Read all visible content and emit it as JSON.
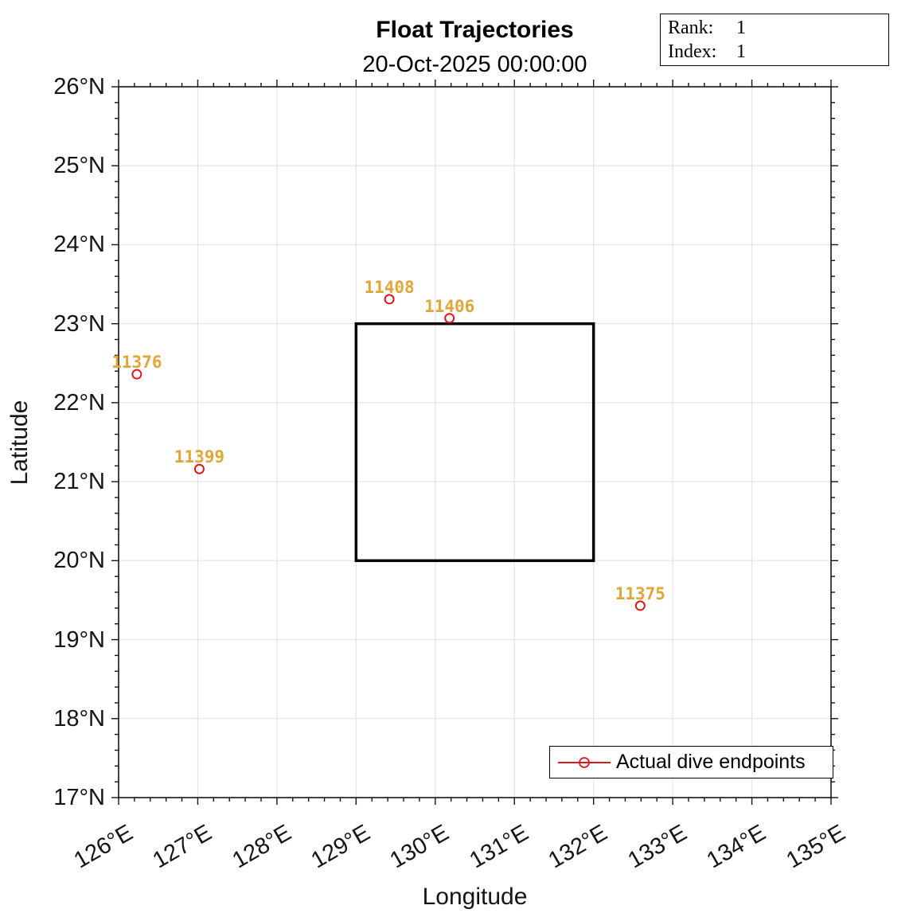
{
  "title": "Float Trajectories",
  "subtitle": "20-Oct-2025 00:00:00",
  "annotation_box": {
    "rows": [
      {
        "label": "Rank:",
        "value": "1"
      },
      {
        "label": "Index:",
        "value": "1"
      }
    ]
  },
  "axes": {
    "xlabel": "Longitude",
    "ylabel": "Latitude"
  },
  "legend": {
    "items": [
      {
        "label": "Actual dive endpoints",
        "marker": "red-open-circle-on-line"
      }
    ]
  },
  "chart_data": {
    "type": "scatter",
    "title": "Float Trajectories",
    "subtitle": "20-Oct-2025 00:00:00",
    "xlabel": "Longitude",
    "ylabel": "Latitude",
    "xlim": [
      126,
      135
    ],
    "ylim": [
      17,
      26
    ],
    "x_tick_labels": [
      "126°E",
      "127°E",
      "128°E",
      "129°E",
      "130°E",
      "131°E",
      "132°E",
      "133°E",
      "134°E",
      "135°E"
    ],
    "y_tick_labels": [
      "17°N",
      "18°N",
      "19°N",
      "20°N",
      "21°N",
      "22°N",
      "23°N",
      "24°N",
      "25°N",
      "26°N"
    ],
    "minor_tick_step": 0.2,
    "grid": true,
    "points": [
      {
        "id": "11376",
        "lon": 126.23,
        "lat": 22.36
      },
      {
        "id": "11399",
        "lon": 127.02,
        "lat": 21.16
      },
      {
        "id": "11408",
        "lon": 129.42,
        "lat": 23.31
      },
      {
        "id": "11406",
        "lon": 130.18,
        "lat": 23.07
      },
      {
        "id": "11375",
        "lon": 132.59,
        "lat": 19.43
      }
    ],
    "region_rectangle": {
      "lon_min": 129,
      "lon_max": 132,
      "lat_min": 20,
      "lat_max": 23
    },
    "colors": {
      "marker": "#e01717",
      "point_label": "#e2a637",
      "grid": "#e4e4e4",
      "axis": "#151515",
      "rectangle": "#000000"
    }
  }
}
